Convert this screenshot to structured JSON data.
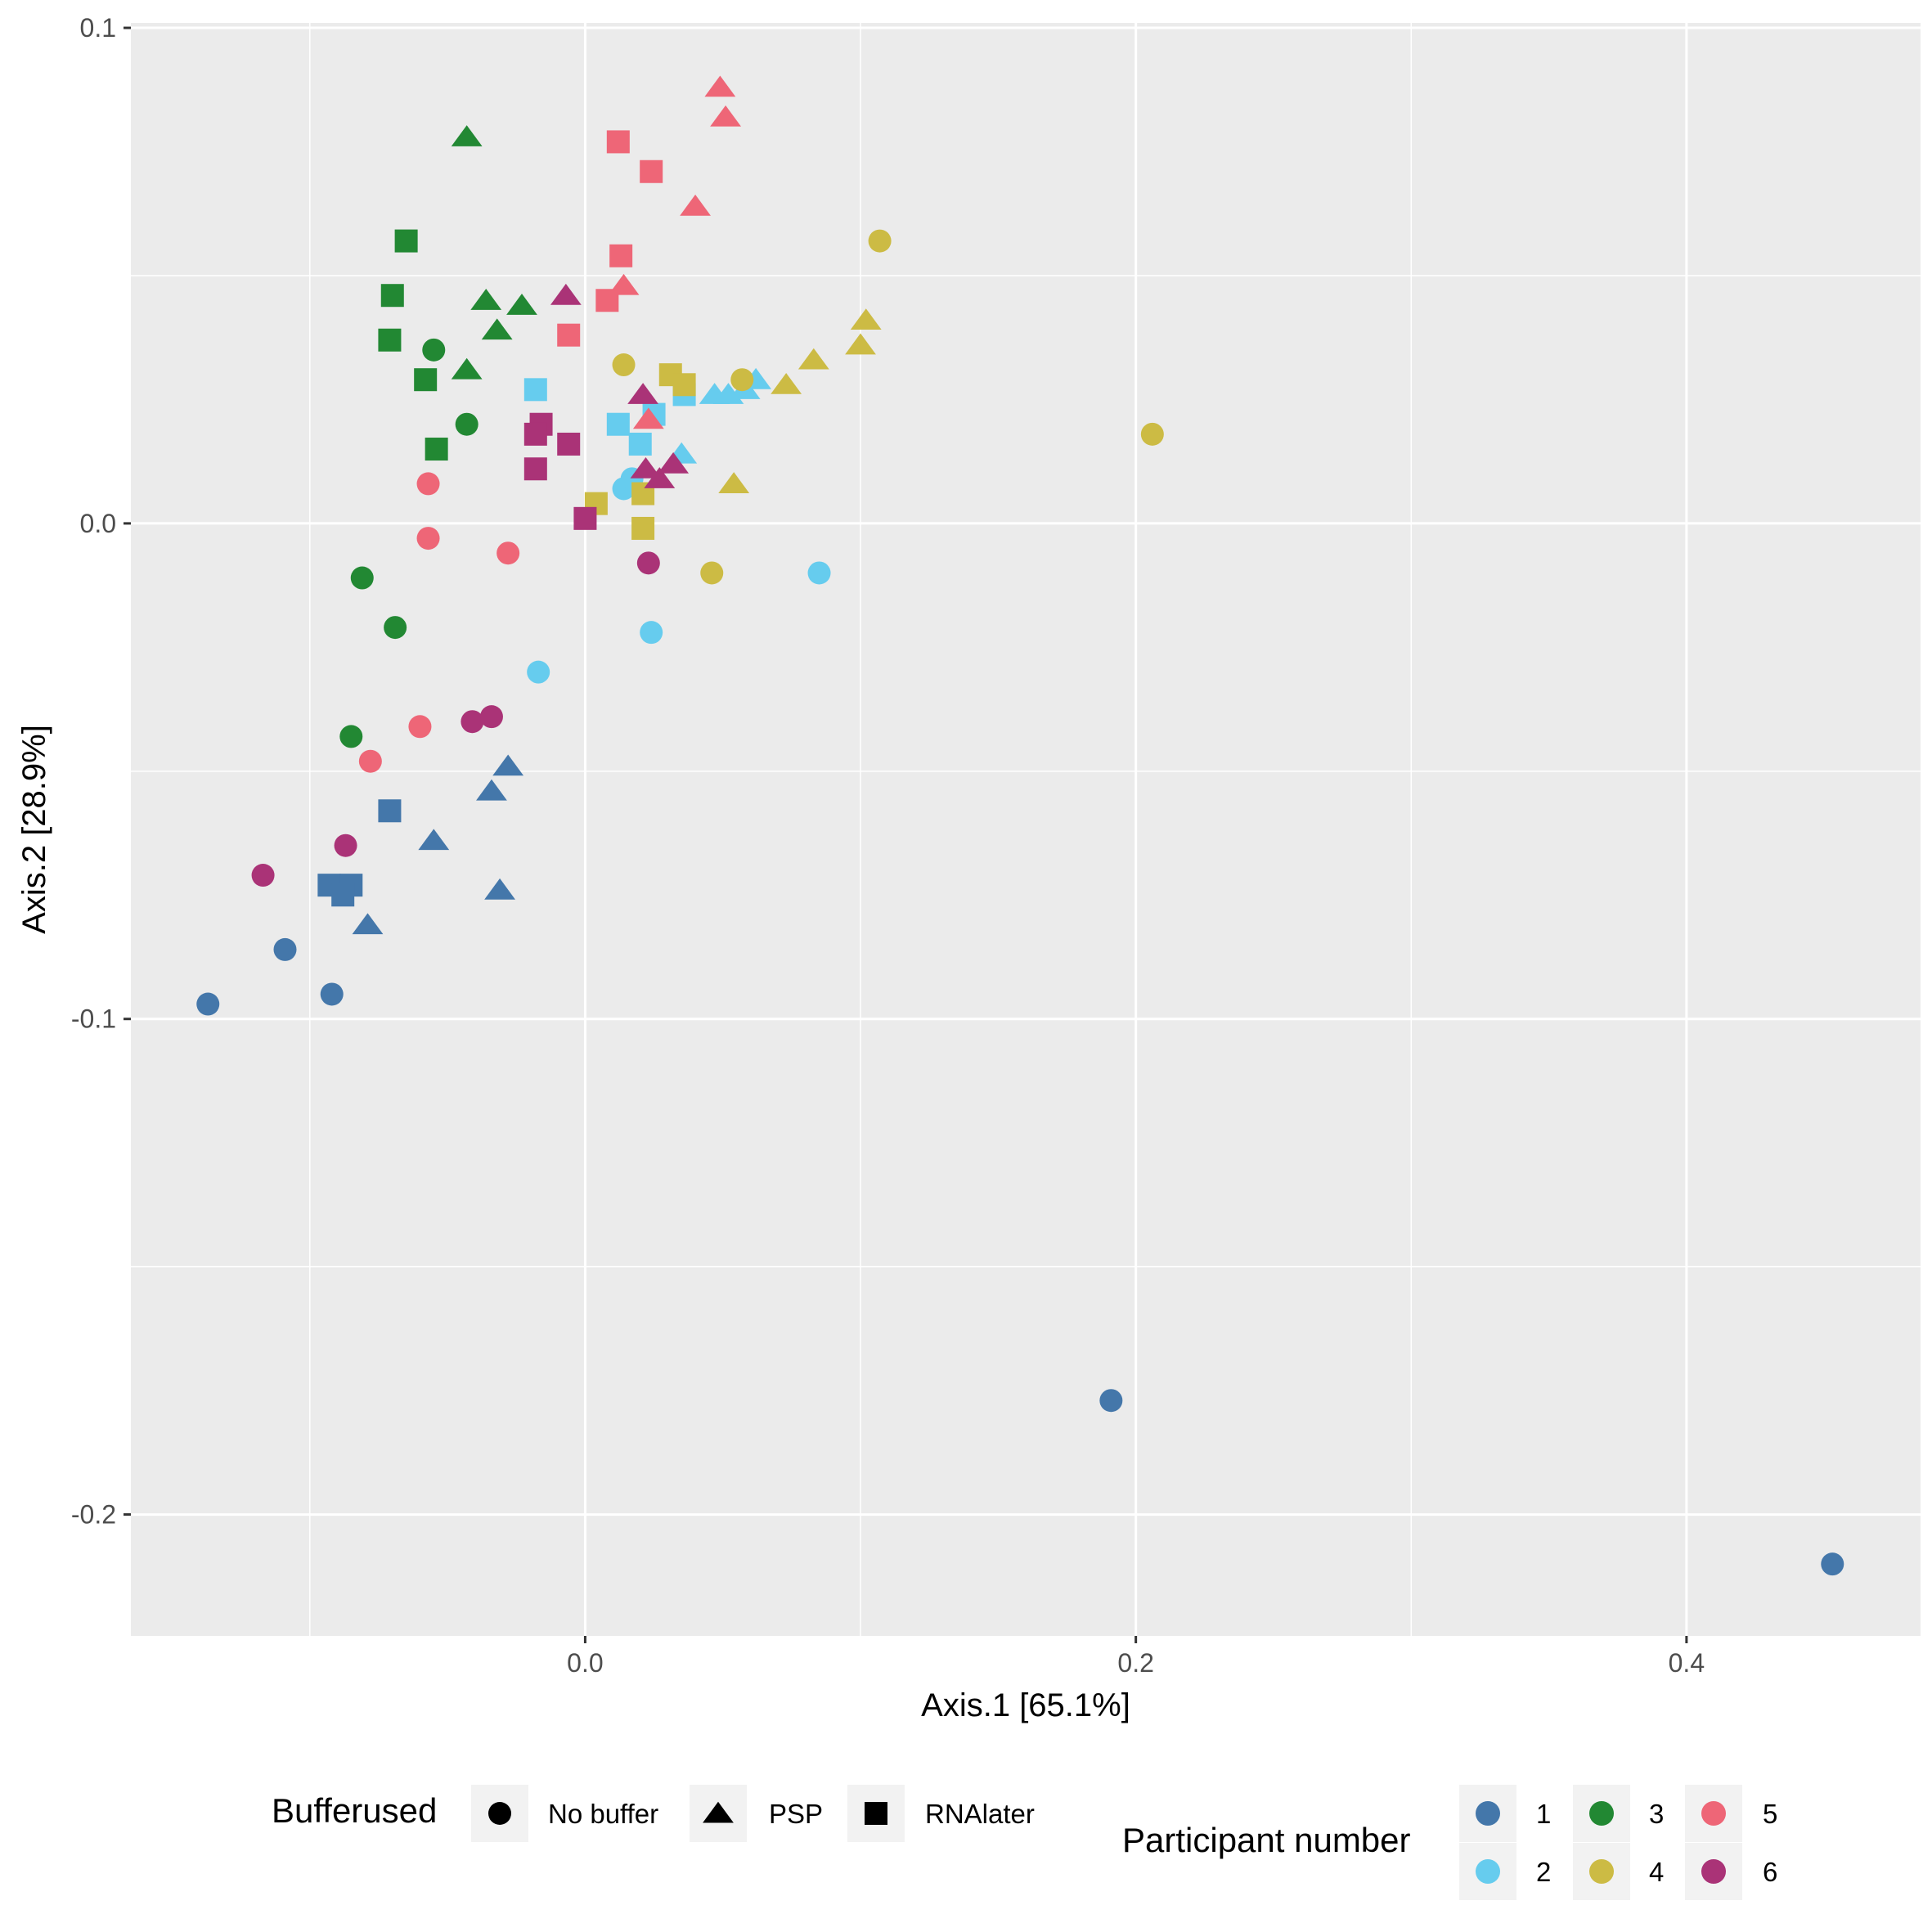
{
  "chart_data": {
    "type": "scatter",
    "xlabel": "Axis.1   [65.1%]",
    "ylabel": "Axis.2   [28.9%]",
    "xlim": [
      -0.165,
      0.485
    ],
    "ylim": [
      -0.2245,
      0.101
    ],
    "x_ticks": [
      {
        "value": 0.0,
        "label": "0.0"
      },
      {
        "value": 0.2,
        "label": "0.2"
      },
      {
        "value": 0.4,
        "label": "0.4"
      }
    ],
    "x_minor": [
      -0.1,
      0.1,
      0.3
    ],
    "y_ticks": [
      {
        "value": 0.1,
        "label": "0.1"
      },
      {
        "value": 0.0,
        "label": "0.0"
      },
      {
        "value": -0.1,
        "label": "-0.1"
      },
      {
        "value": -0.2,
        "label": "-0.2"
      }
    ],
    "y_minor": [
      0.05,
      -0.05,
      -0.15
    ],
    "grid": true,
    "colors": {
      "1": "#4477aa",
      "2": "#66ccee",
      "3": "#228833",
      "4": "#ccbb44",
      "5": "#ee6677",
      "6": "#aa3377"
    },
    "legend_shape": {
      "title": "Bufferused",
      "items": [
        {
          "key": "No buffer",
          "label": "No buffer"
        },
        {
          "key": "PSP",
          "label": "PSP"
        },
        {
          "key": "RNAlater",
          "label": "RNAlater"
        }
      ]
    },
    "legend_color": {
      "title": "Participant number",
      "items": [
        "1",
        "2",
        "3",
        "4",
        "5",
        "6"
      ]
    },
    "points": [
      {
        "x": -0.137,
        "y": -0.097,
        "participant": "1",
        "buffer": "No buffer"
      },
      {
        "x": -0.109,
        "y": -0.086,
        "participant": "1",
        "buffer": "No buffer"
      },
      {
        "x": -0.092,
        "y": -0.095,
        "participant": "1",
        "buffer": "No buffer"
      },
      {
        "x": 0.191,
        "y": -0.177,
        "participant": "1",
        "buffer": "No buffer"
      },
      {
        "x": 0.453,
        "y": -0.21,
        "participant": "1",
        "buffer": "No buffer"
      },
      {
        "x": -0.028,
        "y": -0.049,
        "participant": "1",
        "buffer": "PSP"
      },
      {
        "x": -0.034,
        "y": -0.054,
        "participant": "1",
        "buffer": "PSP"
      },
      {
        "x": -0.055,
        "y": -0.064,
        "participant": "1",
        "buffer": "PSP"
      },
      {
        "x": -0.031,
        "y": -0.074,
        "participant": "1",
        "buffer": "PSP"
      },
      {
        "x": -0.079,
        "y": -0.081,
        "participant": "1",
        "buffer": "PSP"
      },
      {
        "x": -0.071,
        "y": -0.058,
        "participant": "1",
        "buffer": "RNAlater"
      },
      {
        "x": -0.093,
        "y": -0.073,
        "participant": "1",
        "buffer": "RNAlater"
      },
      {
        "x": -0.085,
        "y": -0.073,
        "participant": "1",
        "buffer": "RNAlater"
      },
      {
        "x": -0.088,
        "y": -0.075,
        "participant": "1",
        "buffer": "RNAlater"
      },
      {
        "x": 0.014,
        "y": 0.007,
        "participant": "2",
        "buffer": "No buffer"
      },
      {
        "x": 0.017,
        "y": 0.009,
        "participant": "2",
        "buffer": "No buffer"
      },
      {
        "x": 0.085,
        "y": -0.01,
        "participant": "2",
        "buffer": "No buffer"
      },
      {
        "x": 0.024,
        "y": -0.022,
        "participant": "2",
        "buffer": "No buffer"
      },
      {
        "x": -0.017,
        "y": -0.03,
        "participant": "2",
        "buffer": "No buffer"
      },
      {
        "x": 0.047,
        "y": 0.026,
        "participant": "2",
        "buffer": "PSP"
      },
      {
        "x": 0.052,
        "y": 0.026,
        "participant": "2",
        "buffer": "PSP"
      },
      {
        "x": 0.058,
        "y": 0.027,
        "participant": "2",
        "buffer": "PSP"
      },
      {
        "x": 0.062,
        "y": 0.029,
        "participant": "2",
        "buffer": "PSP"
      },
      {
        "x": 0.035,
        "y": 0.014,
        "participant": "2",
        "buffer": "PSP"
      },
      {
        "x": -0.018,
        "y": 0.027,
        "participant": "2",
        "buffer": "RNAlater"
      },
      {
        "x": 0.012,
        "y": 0.02,
        "participant": "2",
        "buffer": "RNAlater"
      },
      {
        "x": 0.025,
        "y": 0.022,
        "participant": "2",
        "buffer": "RNAlater"
      },
      {
        "x": 0.02,
        "y": 0.016,
        "participant": "2",
        "buffer": "RNAlater"
      },
      {
        "x": 0.036,
        "y": 0.026,
        "participant": "2",
        "buffer": "RNAlater"
      },
      {
        "x": -0.055,
        "y": 0.035,
        "participant": "3",
        "buffer": "No buffer"
      },
      {
        "x": -0.043,
        "y": 0.02,
        "participant": "3",
        "buffer": "No buffer"
      },
      {
        "x": -0.081,
        "y": -0.011,
        "participant": "3",
        "buffer": "No buffer"
      },
      {
        "x": -0.069,
        "y": -0.021,
        "participant": "3",
        "buffer": "No buffer"
      },
      {
        "x": -0.085,
        "y": -0.043,
        "participant": "3",
        "buffer": "No buffer"
      },
      {
        "x": -0.043,
        "y": 0.078,
        "participant": "3",
        "buffer": "PSP"
      },
      {
        "x": -0.036,
        "y": 0.045,
        "participant": "3",
        "buffer": "PSP"
      },
      {
        "x": -0.023,
        "y": 0.044,
        "participant": "3",
        "buffer": "PSP"
      },
      {
        "x": -0.032,
        "y": 0.039,
        "participant": "3",
        "buffer": "PSP"
      },
      {
        "x": -0.043,
        "y": 0.031,
        "participant": "3",
        "buffer": "PSP"
      },
      {
        "x": -0.065,
        "y": 0.057,
        "participant": "3",
        "buffer": "RNAlater"
      },
      {
        "x": -0.07,
        "y": 0.046,
        "participant": "3",
        "buffer": "RNAlater"
      },
      {
        "x": -0.071,
        "y": 0.037,
        "participant": "3",
        "buffer": "RNAlater"
      },
      {
        "x": -0.058,
        "y": 0.029,
        "participant": "3",
        "buffer": "RNAlater"
      },
      {
        "x": -0.054,
        "y": 0.015,
        "participant": "3",
        "buffer": "RNAlater"
      },
      {
        "x": 0.107,
        "y": 0.057,
        "participant": "4",
        "buffer": "No buffer"
      },
      {
        "x": 0.014,
        "y": 0.032,
        "participant": "4",
        "buffer": "No buffer"
      },
      {
        "x": 0.057,
        "y": 0.029,
        "participant": "4",
        "buffer": "No buffer"
      },
      {
        "x": 0.206,
        "y": 0.018,
        "participant": "4",
        "buffer": "No buffer"
      },
      {
        "x": 0.046,
        "y": -0.01,
        "participant": "4",
        "buffer": "No buffer"
      },
      {
        "x": 0.102,
        "y": 0.041,
        "participant": "4",
        "buffer": "PSP"
      },
      {
        "x": 0.1,
        "y": 0.036,
        "participant": "4",
        "buffer": "PSP"
      },
      {
        "x": 0.083,
        "y": 0.033,
        "participant": "4",
        "buffer": "PSP"
      },
      {
        "x": 0.073,
        "y": 0.028,
        "participant": "4",
        "buffer": "PSP"
      },
      {
        "x": 0.054,
        "y": 0.008,
        "participant": "4",
        "buffer": "PSP"
      },
      {
        "x": 0.031,
        "y": 0.03,
        "participant": "4",
        "buffer": "RNAlater"
      },
      {
        "x": 0.036,
        "y": 0.028,
        "participant": "4",
        "buffer": "RNAlater"
      },
      {
        "x": 0.004,
        "y": 0.004,
        "participant": "4",
        "buffer": "RNAlater"
      },
      {
        "x": 0.021,
        "y": 0.006,
        "participant": "4",
        "buffer": "RNAlater"
      },
      {
        "x": 0.021,
        "y": -0.001,
        "participant": "4",
        "buffer": "RNAlater"
      },
      {
        "x": -0.057,
        "y": 0.008,
        "participant": "5",
        "buffer": "No buffer"
      },
      {
        "x": -0.057,
        "y": -0.003,
        "participant": "5",
        "buffer": "No buffer"
      },
      {
        "x": -0.028,
        "y": -0.006,
        "participant": "5",
        "buffer": "No buffer"
      },
      {
        "x": -0.06,
        "y": -0.041,
        "participant": "5",
        "buffer": "No buffer"
      },
      {
        "x": -0.078,
        "y": -0.048,
        "participant": "5",
        "buffer": "No buffer"
      },
      {
        "x": 0.049,
        "y": 0.088,
        "participant": "5",
        "buffer": "PSP"
      },
      {
        "x": 0.051,
        "y": 0.082,
        "participant": "5",
        "buffer": "PSP"
      },
      {
        "x": 0.04,
        "y": 0.064,
        "participant": "5",
        "buffer": "PSP"
      },
      {
        "x": 0.014,
        "y": 0.048,
        "participant": "5",
        "buffer": "PSP"
      },
      {
        "x": 0.023,
        "y": 0.021,
        "participant": "5",
        "buffer": "PSP"
      },
      {
        "x": 0.012,
        "y": 0.077,
        "participant": "5",
        "buffer": "RNAlater"
      },
      {
        "x": 0.024,
        "y": 0.071,
        "participant": "5",
        "buffer": "RNAlater"
      },
      {
        "x": 0.013,
        "y": 0.054,
        "participant": "5",
        "buffer": "RNAlater"
      },
      {
        "x": 0.008,
        "y": 0.045,
        "participant": "5",
        "buffer": "RNAlater"
      },
      {
        "x": -0.006,
        "y": 0.038,
        "participant": "5",
        "buffer": "RNAlater"
      },
      {
        "x": 0.023,
        "y": -0.008,
        "participant": "6",
        "buffer": "No buffer"
      },
      {
        "x": -0.041,
        "y": -0.04,
        "participant": "6",
        "buffer": "No buffer"
      },
      {
        "x": -0.034,
        "y": -0.039,
        "participant": "6",
        "buffer": "No buffer"
      },
      {
        "x": -0.087,
        "y": -0.065,
        "participant": "6",
        "buffer": "No buffer"
      },
      {
        "x": -0.117,
        "y": -0.071,
        "participant": "6",
        "buffer": "No buffer"
      },
      {
        "x": -0.007,
        "y": 0.046,
        "participant": "6",
        "buffer": "PSP"
      },
      {
        "x": 0.021,
        "y": 0.026,
        "participant": "6",
        "buffer": "PSP"
      },
      {
        "x": 0.022,
        "y": 0.011,
        "participant": "6",
        "buffer": "PSP"
      },
      {
        "x": 0.027,
        "y": 0.009,
        "participant": "6",
        "buffer": "PSP"
      },
      {
        "x": 0.032,
        "y": 0.012,
        "participant": "6",
        "buffer": "PSP"
      },
      {
        "x": -0.016,
        "y": 0.02,
        "participant": "6",
        "buffer": "RNAlater"
      },
      {
        "x": -0.018,
        "y": 0.018,
        "participant": "6",
        "buffer": "RNAlater"
      },
      {
        "x": -0.006,
        "y": 0.016,
        "participant": "6",
        "buffer": "RNAlater"
      },
      {
        "x": -0.018,
        "y": 0.011,
        "participant": "6",
        "buffer": "RNAlater"
      },
      {
        "x": 0.0,
        "y": 0.001,
        "participant": "6",
        "buffer": "RNAlater"
      }
    ]
  }
}
